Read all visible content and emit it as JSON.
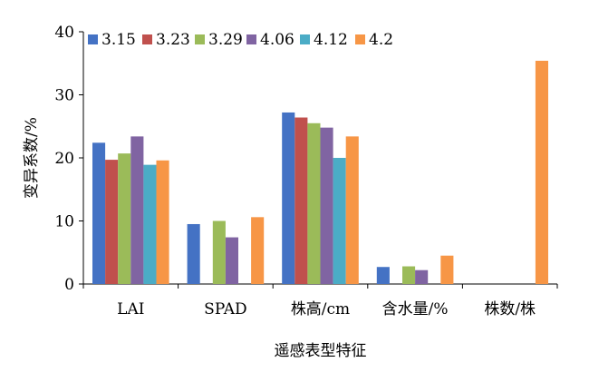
{
  "chart_data": {
    "type": "bar",
    "categories": [
      "LAI",
      "SPAD",
      "株高/cm",
      "含水量/%",
      "株数/株"
    ],
    "series": [
      {
        "name": "3.15",
        "color": "#4472C4",
        "values": [
          22.4,
          9.5,
          27.2,
          2.7,
          0
        ]
      },
      {
        "name": "3.23",
        "color": "#C0504D",
        "values": [
          19.7,
          0,
          26.4,
          0,
          0
        ]
      },
      {
        "name": "3.29",
        "color": "#9BBB59",
        "values": [
          20.7,
          10.0,
          25.5,
          2.8,
          0
        ]
      },
      {
        "name": "4.06",
        "color": "#8064A2",
        "values": [
          23.4,
          7.4,
          24.8,
          2.2,
          0
        ]
      },
      {
        "name": "4.12",
        "color": "#4BACC6",
        "values": [
          18.9,
          0,
          20.0,
          0,
          0
        ]
      },
      {
        "name": "4.2",
        "color": "#F79646",
        "values": [
          19.6,
          10.6,
          23.4,
          4.5,
          35.4
        ]
      }
    ],
    "title": "",
    "xlabel": "遥感表型特征",
    "ylabel": "变异系数/%",
    "ylim": [
      0,
      40
    ],
    "yticks": [
      0,
      10,
      20,
      30,
      40
    ],
    "grid": false,
    "legend_position": "top-left"
  }
}
